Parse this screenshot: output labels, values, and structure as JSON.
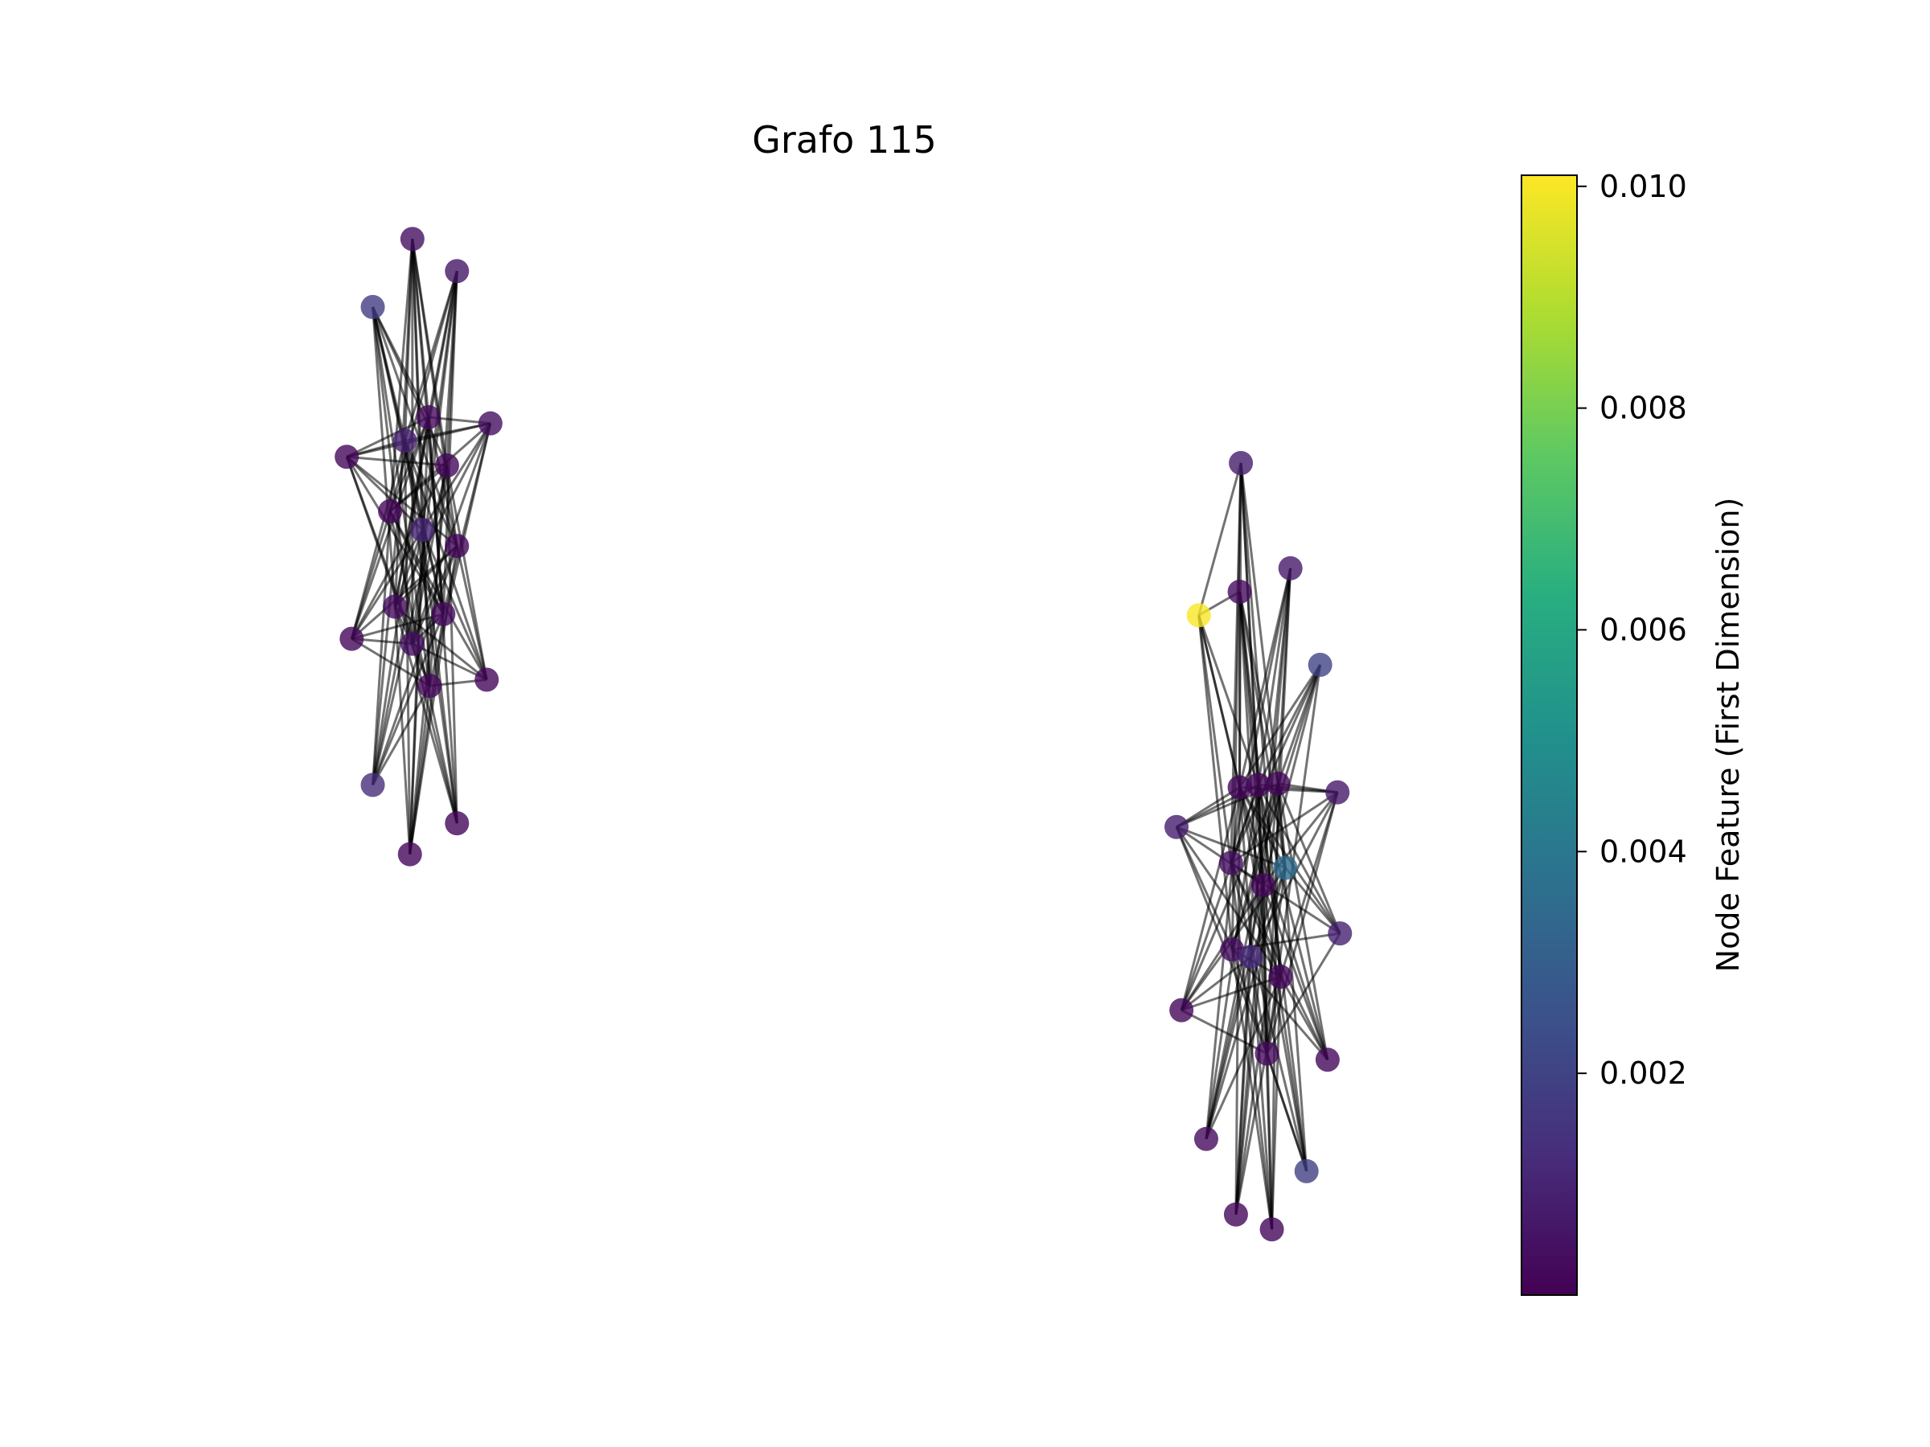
{
  "title": "Grafo 115",
  "colorbar": {
    "label": "Node Feature (First Dimension)",
    "colormap": "viridis",
    "min": 0.0,
    "max": 0.0101,
    "ticks": [
      {
        "value": 0.01,
        "label": "0.010"
      },
      {
        "value": 0.008,
        "label": "0.008"
      },
      {
        "value": 0.006,
        "label": "0.006"
      },
      {
        "value": 0.004,
        "label": "0.004"
      },
      {
        "value": 0.002,
        "label": "0.002"
      }
    ]
  },
  "chart_data": {
    "type": "network",
    "title": "Grafo 115",
    "node_alpha": 0.8,
    "edge_color": "#000000",
    "edge_alpha": 0.55,
    "components": [
      {
        "name": "",
        "nodes": [
          {
            "id": "A0",
            "x": 0.333,
            "y": 0.193,
            "value": 0.0004
          },
          {
            "id": "A1",
            "x": 0.369,
            "y": 0.219,
            "value": 0.0006
          },
          {
            "id": "A2",
            "x": 0.301,
            "y": 0.248,
            "value": 0.0018
          },
          {
            "id": "A3",
            "x": 0.346,
            "y": 0.337,
            "value": 0.0003
          },
          {
            "id": "A4",
            "x": 0.396,
            "y": 0.342,
            "value": 0.0004
          },
          {
            "id": "A5",
            "x": 0.327,
            "y": 0.356,
            "value": 0.0009
          },
          {
            "id": "A6",
            "x": 0.28,
            "y": 0.369,
            "value": 0.0002
          },
          {
            "id": "A7",
            "x": 0.361,
            "y": 0.376,
            "value": 0.0002
          },
          {
            "id": "A8",
            "x": 0.315,
            "y": 0.413,
            "value": 0.0002
          },
          {
            "id": "A9",
            "x": 0.341,
            "y": 0.428,
            "value": 0.001
          },
          {
            "id": "A10",
            "x": 0.369,
            "y": 0.441,
            "value": 0.0002
          },
          {
            "id": "A11",
            "x": 0.319,
            "y": 0.49,
            "value": 0.0003
          },
          {
            "id": "A12",
            "x": 0.358,
            "y": 0.496,
            "value": 0.0003
          },
          {
            "id": "A13",
            "x": 0.284,
            "y": 0.516,
            "value": 0.0002
          },
          {
            "id": "A14",
            "x": 0.333,
            "y": 0.52,
            "value": 0.0004
          },
          {
            "id": "A15",
            "x": 0.347,
            "y": 0.554,
            "value": 0.0002
          },
          {
            "id": "A16",
            "x": 0.393,
            "y": 0.549,
            "value": 0.0002
          },
          {
            "id": "A17",
            "x": 0.301,
            "y": 0.634,
            "value": 0.0013
          },
          {
            "id": "A18",
            "x": 0.369,
            "y": 0.665,
            "value": 0.0002
          },
          {
            "id": "A19",
            "x": 0.331,
            "y": 0.69,
            "value": 0.0002
          }
        ]
      },
      {
        "name": "",
        "nodes": [
          {
            "id": "B0",
            "x": 1.002,
            "y": 0.374,
            "value": 0.0008
          },
          {
            "id": "B1",
            "x": 1.042,
            "y": 0.459,
            "value": 0.0007
          },
          {
            "id": "B2",
            "x": 1.001,
            "y": 0.478,
            "value": 0.0003
          },
          {
            "id": "B3",
            "x": 0.968,
            "y": 0.497,
            "value": 0.01
          },
          {
            "id": "B4",
            "x": 1.066,
            "y": 0.537,
            "value": 0.002
          },
          {
            "id": "B5",
            "x": 1.001,
            "y": 0.636,
            "value": 0.0002
          },
          {
            "id": "B6",
            "x": 1.016,
            "y": 0.634,
            "value": 0.0002
          },
          {
            "id": "B7",
            "x": 1.032,
            "y": 0.633,
            "value": 0.0002
          },
          {
            "id": "B8",
            "x": 1.08,
            "y": 0.64,
            "value": 0.0007
          },
          {
            "id": "B9",
            "x": 0.95,
            "y": 0.668,
            "value": 0.0008
          },
          {
            "id": "B10",
            "x": 0.994,
            "y": 0.697,
            "value": 0.0004
          },
          {
            "id": "B11",
            "x": 1.038,
            "y": 0.701,
            "value": 0.0035
          },
          {
            "id": "B12",
            "x": 1.02,
            "y": 0.715,
            "value": 0.0002
          },
          {
            "id": "B13",
            "x": 1.082,
            "y": 0.754,
            "value": 0.0009
          },
          {
            "id": "B14",
            "x": 0.995,
            "y": 0.767,
            "value": 0.0004
          },
          {
            "id": "B15",
            "x": 1.01,
            "y": 0.773,
            "value": 0.0012
          },
          {
            "id": "B16",
            "x": 1.034,
            "y": 0.789,
            "value": 0.0002
          },
          {
            "id": "B17",
            "x": 0.954,
            "y": 0.816,
            "value": 0.0002
          },
          {
            "id": "B18",
            "x": 1.023,
            "y": 0.851,
            "value": 0.0003
          },
          {
            "id": "B19",
            "x": 1.072,
            "y": 0.856,
            "value": 0.0002
          },
          {
            "id": "B20",
            "x": 0.974,
            "y": 0.92,
            "value": 0.0003
          },
          {
            "id": "B21",
            "x": 1.055,
            "y": 0.946,
            "value": 0.0019
          },
          {
            "id": "B22",
            "x": 0.998,
            "y": 0.981,
            "value": 0.0002
          },
          {
            "id": "B23",
            "x": 1.027,
            "y": 0.993,
            "value": 0.0002
          }
        ]
      }
    ],
    "edges": [
      [
        "A0",
        "A3"
      ],
      [
        "A0",
        "A5"
      ],
      [
        "A0",
        "A7"
      ],
      [
        "A0",
        "A8"
      ],
      [
        "A0",
        "A9"
      ],
      [
        "A0",
        "A10"
      ],
      [
        "A0",
        "A11"
      ],
      [
        "A0",
        "A12"
      ],
      [
        "A0",
        "A14"
      ],
      [
        "A0",
        "A15"
      ],
      [
        "A1",
        "A3"
      ],
      [
        "A1",
        "A5"
      ],
      [
        "A1",
        "A7"
      ],
      [
        "A1",
        "A8"
      ],
      [
        "A1",
        "A9"
      ],
      [
        "A1",
        "A11"
      ],
      [
        "A1",
        "A12"
      ],
      [
        "A1",
        "A14"
      ],
      [
        "A1",
        "A15"
      ],
      [
        "A2",
        "A3"
      ],
      [
        "A2",
        "A5"
      ],
      [
        "A2",
        "A7"
      ],
      [
        "A2",
        "A9"
      ],
      [
        "A2",
        "A10"
      ],
      [
        "A2",
        "A11"
      ],
      [
        "A2",
        "A12"
      ],
      [
        "A2",
        "A14"
      ],
      [
        "A2",
        "A15"
      ],
      [
        "A4",
        "A3"
      ],
      [
        "A4",
        "A5"
      ],
      [
        "A4",
        "A6"
      ],
      [
        "A4",
        "A8"
      ],
      [
        "A4",
        "A9"
      ],
      [
        "A4",
        "A11"
      ],
      [
        "A4",
        "A12"
      ],
      [
        "A4",
        "A14"
      ],
      [
        "A4",
        "A15"
      ],
      [
        "A6",
        "A3"
      ],
      [
        "A6",
        "A5"
      ],
      [
        "A6",
        "A7"
      ],
      [
        "A6",
        "A9"
      ],
      [
        "A6",
        "A10"
      ],
      [
        "A6",
        "A12"
      ],
      [
        "A6",
        "A14"
      ],
      [
        "A6",
        "A15"
      ],
      [
        "A13",
        "A3"
      ],
      [
        "A13",
        "A5"
      ],
      [
        "A13",
        "A7"
      ],
      [
        "A13",
        "A8"
      ],
      [
        "A13",
        "A9"
      ],
      [
        "A13",
        "A10"
      ],
      [
        "A13",
        "A12"
      ],
      [
        "A13",
        "A14"
      ],
      [
        "A13",
        "A15"
      ],
      [
        "A16",
        "A3"
      ],
      [
        "A16",
        "A5"
      ],
      [
        "A16",
        "A7"
      ],
      [
        "A16",
        "A8"
      ],
      [
        "A16",
        "A9"
      ],
      [
        "A16",
        "A11"
      ],
      [
        "A16",
        "A14"
      ],
      [
        "A16",
        "A15"
      ],
      [
        "A17",
        "A3"
      ],
      [
        "A17",
        "A5"
      ],
      [
        "A17",
        "A7"
      ],
      [
        "A17",
        "A8"
      ],
      [
        "A17",
        "A9"
      ],
      [
        "A17",
        "A10"
      ],
      [
        "A17",
        "A12"
      ],
      [
        "A17",
        "A15"
      ],
      [
        "A18",
        "A3"
      ],
      [
        "A18",
        "A5"
      ],
      [
        "A18",
        "A7"
      ],
      [
        "A18",
        "A8"
      ],
      [
        "A18",
        "A9"
      ],
      [
        "A18",
        "A11"
      ],
      [
        "A18",
        "A14"
      ],
      [
        "A19",
        "A3"
      ],
      [
        "A19",
        "A5"
      ],
      [
        "A19",
        "A7"
      ],
      [
        "A19",
        "A9"
      ],
      [
        "A19",
        "A10"
      ],
      [
        "A19",
        "A11"
      ],
      [
        "A19",
        "A12"
      ],
      [
        "A19",
        "A15"
      ],
      [
        "A3",
        "A8"
      ],
      [
        "A3",
        "A11"
      ],
      [
        "A3",
        "A12"
      ],
      [
        "A5",
        "A10"
      ],
      [
        "A5",
        "A12"
      ],
      [
        "A7",
        "A8"
      ],
      [
        "A7",
        "A14"
      ],
      [
        "A8",
        "A12"
      ],
      [
        "A9",
        "A11"
      ],
      [
        "A9",
        "A15"
      ],
      [
        "A10",
        "A11"
      ],
      [
        "A10",
        "A14"
      ],
      [
        "A12",
        "A14"
      ],
      [
        "A11",
        "A15"
      ],
      [
        "B0",
        "B3"
      ],
      [
        "B0",
        "B5"
      ],
      [
        "B0",
        "B6"
      ],
      [
        "B0",
        "B7"
      ],
      [
        "B0",
        "B10"
      ],
      [
        "B0",
        "B12"
      ],
      [
        "B0",
        "B14"
      ],
      [
        "B0",
        "B16"
      ],
      [
        "B1",
        "B5"
      ],
      [
        "B1",
        "B6"
      ],
      [
        "B1",
        "B7"
      ],
      [
        "B1",
        "B10"
      ],
      [
        "B1",
        "B12"
      ],
      [
        "B1",
        "B15"
      ],
      [
        "B1",
        "B18"
      ],
      [
        "B2",
        "B3"
      ],
      [
        "B2",
        "B5"
      ],
      [
        "B2",
        "B6"
      ],
      [
        "B2",
        "B7"
      ],
      [
        "B2",
        "B11"
      ],
      [
        "B2",
        "B12"
      ],
      [
        "B2",
        "B16"
      ],
      [
        "B2",
        "B18"
      ],
      [
        "B3",
        "B5"
      ],
      [
        "B3",
        "B6"
      ],
      [
        "B3",
        "B10"
      ],
      [
        "B3",
        "B12"
      ],
      [
        "B3",
        "B14"
      ],
      [
        "B4",
        "B5"
      ],
      [
        "B4",
        "B6"
      ],
      [
        "B4",
        "B7"
      ],
      [
        "B4",
        "B10"
      ],
      [
        "B4",
        "B12"
      ],
      [
        "B4",
        "B14"
      ],
      [
        "B4",
        "B18"
      ],
      [
        "B8",
        "B5"
      ],
      [
        "B8",
        "B6"
      ],
      [
        "B8",
        "B7"
      ],
      [
        "B8",
        "B10"
      ],
      [
        "B8",
        "B12"
      ],
      [
        "B8",
        "B15"
      ],
      [
        "B8",
        "B16"
      ],
      [
        "B8",
        "B18"
      ],
      [
        "B9",
        "B5"
      ],
      [
        "B9",
        "B6"
      ],
      [
        "B9",
        "B7"
      ],
      [
        "B9",
        "B11"
      ],
      [
        "B9",
        "B12"
      ],
      [
        "B9",
        "B14"
      ],
      [
        "B9",
        "B16"
      ],
      [
        "B9",
        "B18"
      ],
      [
        "B13",
        "B5"
      ],
      [
        "B13",
        "B6"
      ],
      [
        "B13",
        "B7"
      ],
      [
        "B13",
        "B10"
      ],
      [
        "B13",
        "B11"
      ],
      [
        "B13",
        "B14"
      ],
      [
        "B13",
        "B18"
      ],
      [
        "B17",
        "B5"
      ],
      [
        "B17",
        "B6"
      ],
      [
        "B17",
        "B7"
      ],
      [
        "B17",
        "B11"
      ],
      [
        "B17",
        "B12"
      ],
      [
        "B17",
        "B15"
      ],
      [
        "B17",
        "B16"
      ],
      [
        "B17",
        "B18"
      ],
      [
        "B19",
        "B5"
      ],
      [
        "B19",
        "B6"
      ],
      [
        "B19",
        "B7"
      ],
      [
        "B19",
        "B10"
      ],
      [
        "B19",
        "B12"
      ],
      [
        "B19",
        "B14"
      ],
      [
        "B19",
        "B16"
      ],
      [
        "B20",
        "B5"
      ],
      [
        "B20",
        "B6"
      ],
      [
        "B20",
        "B7"
      ],
      [
        "B20",
        "B11"
      ],
      [
        "B20",
        "B12"
      ],
      [
        "B20",
        "B15"
      ],
      [
        "B20",
        "B16"
      ],
      [
        "B21",
        "B5"
      ],
      [
        "B21",
        "B6"
      ],
      [
        "B21",
        "B7"
      ],
      [
        "B21",
        "B10"
      ],
      [
        "B21",
        "B12"
      ],
      [
        "B21",
        "B14"
      ],
      [
        "B21",
        "B18"
      ],
      [
        "B22",
        "B5"
      ],
      [
        "B22",
        "B6"
      ],
      [
        "B22",
        "B7"
      ],
      [
        "B22",
        "B11"
      ],
      [
        "B22",
        "B12"
      ],
      [
        "B22",
        "B15"
      ],
      [
        "B22",
        "B16"
      ],
      [
        "B23",
        "B5"
      ],
      [
        "B23",
        "B6"
      ],
      [
        "B23",
        "B7"
      ],
      [
        "B23",
        "B10"
      ],
      [
        "B23",
        "B12"
      ],
      [
        "B23",
        "B14"
      ],
      [
        "B23",
        "B16"
      ],
      [
        "B5",
        "B11"
      ],
      [
        "B6",
        "B10"
      ],
      [
        "B7",
        "B14"
      ],
      [
        "B10",
        "B16"
      ],
      [
        "B11",
        "B15"
      ],
      [
        "B12",
        "B18"
      ],
      [
        "B14",
        "B16"
      ],
      [
        "B15",
        "B18"
      ],
      [
        "B6",
        "B12"
      ],
      [
        "B7",
        "B11"
      ]
    ]
  }
}
